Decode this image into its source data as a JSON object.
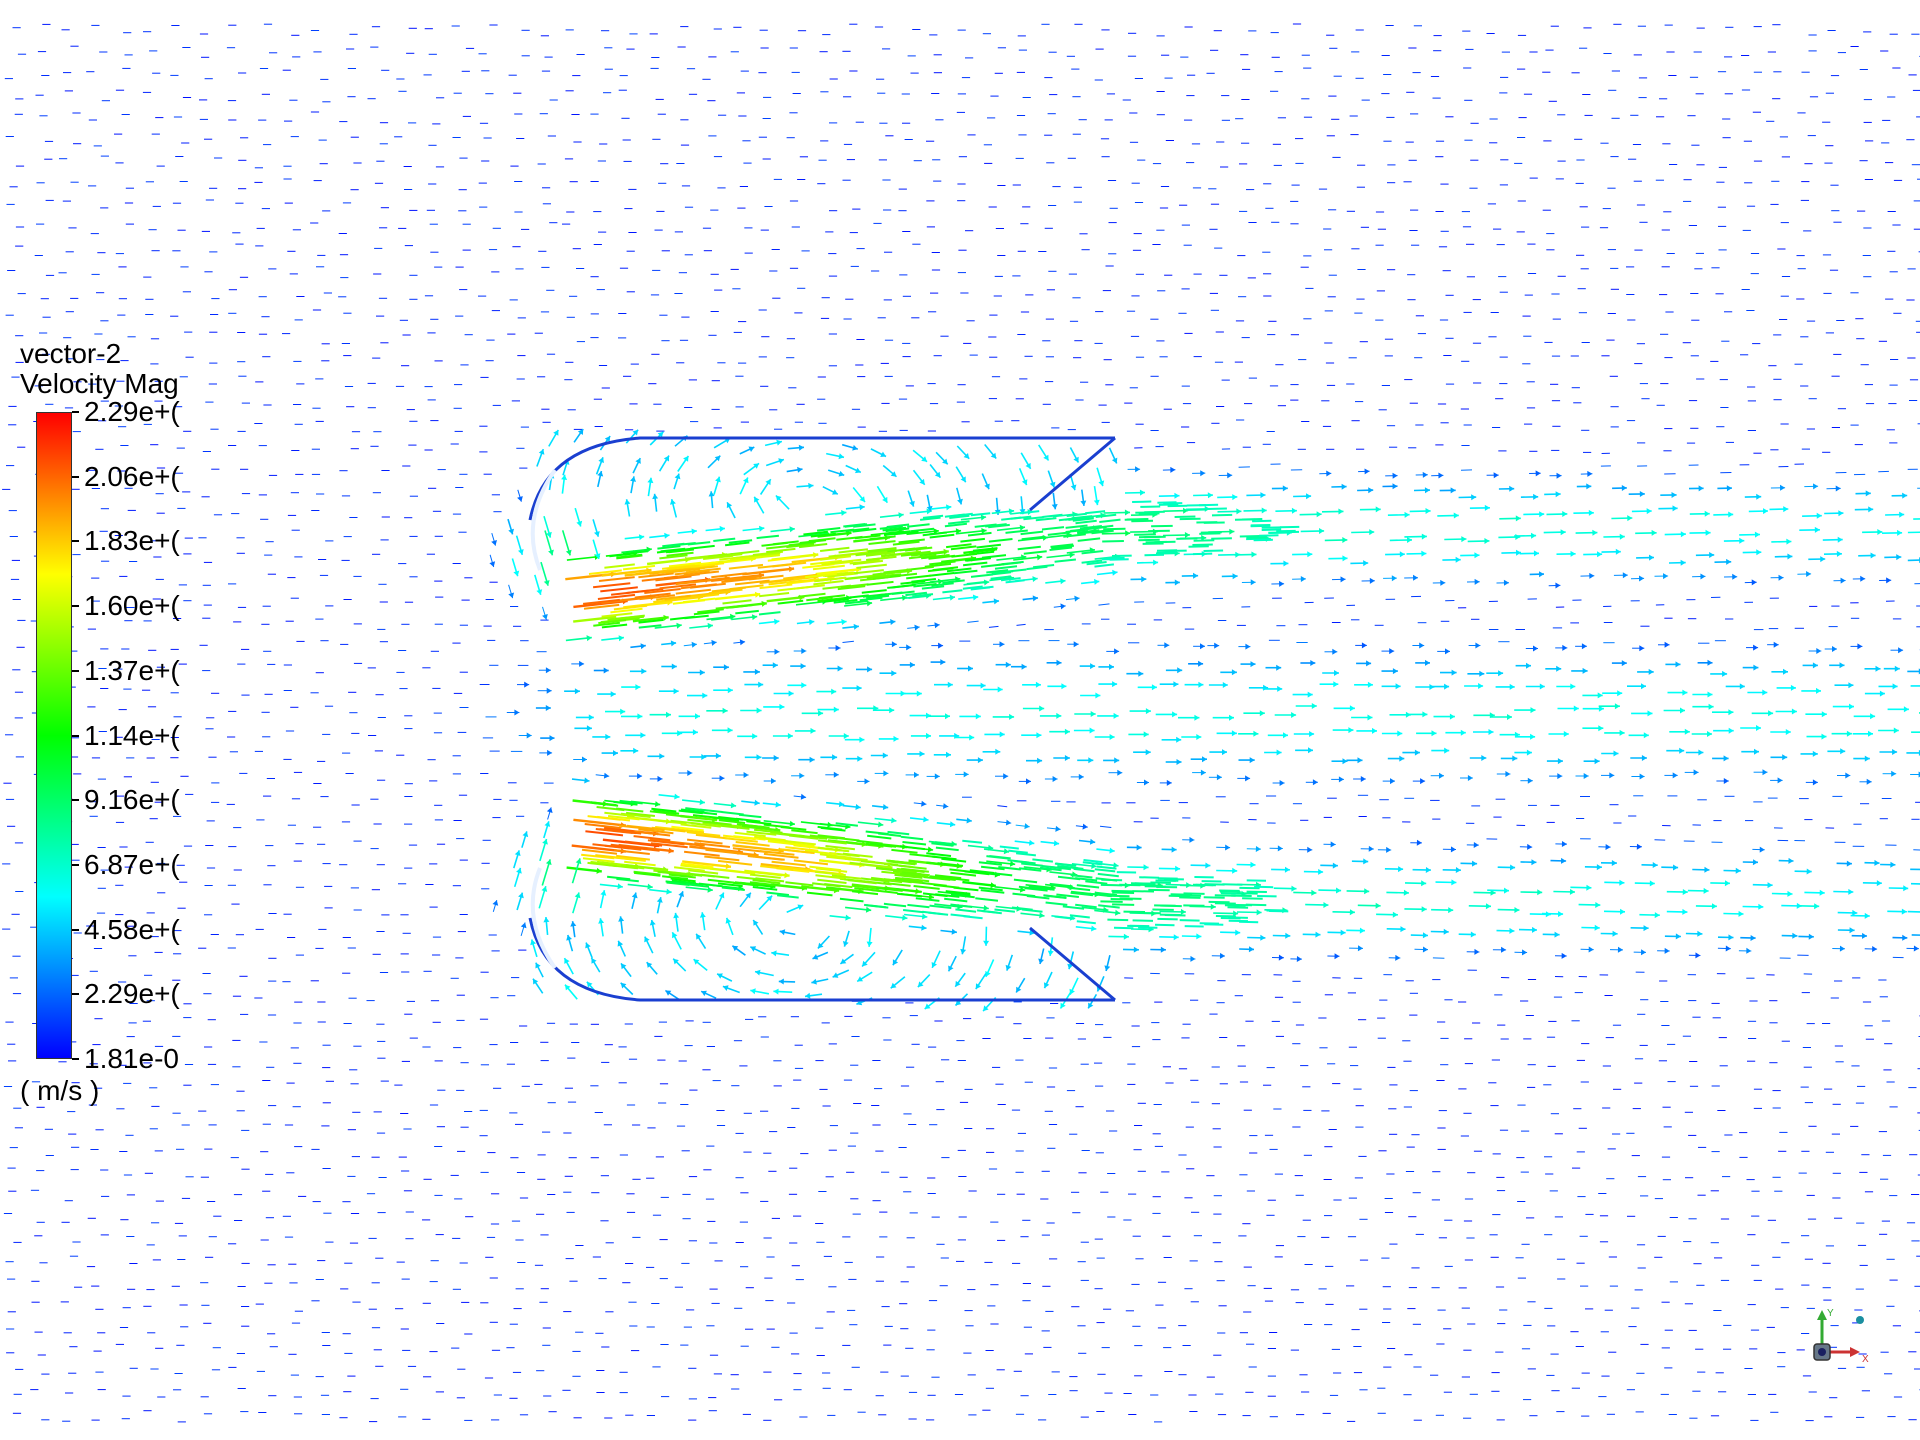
{
  "legend": {
    "title": "vector-2",
    "subtitle": "Velocity Mag",
    "units": "( m/s )",
    "ticks": [
      {
        "label": "2.29e+(",
        "frac": 1.0
      },
      {
        "label": "2.06e+(",
        "frac": 0.9
      },
      {
        "label": "1.83e+(",
        "frac": 0.8
      },
      {
        "label": "1.60e+(",
        "frac": 0.7
      },
      {
        "label": "1.37e+(",
        "frac": 0.6
      },
      {
        "label": "1.14e+(",
        "frac": 0.5
      },
      {
        "label": "9.16e+(",
        "frac": 0.4
      },
      {
        "label": "6.87e+(",
        "frac": 0.3
      },
      {
        "label": "4.58e+(",
        "frac": 0.2
      },
      {
        "label": "2.29e+(",
        "frac": 0.1
      },
      {
        "label": "1.81e-0",
        "frac": 0.0
      }
    ],
    "colormap": [
      "#0000ff",
      "#0080ff",
      "#00ffff",
      "#00ff80",
      "#00ff00",
      "#80ff00",
      "#ffff00",
      "#ff8000",
      "#ff0000"
    ]
  },
  "triad": {
    "x_label": "X",
    "y_label": "Y"
  }
}
